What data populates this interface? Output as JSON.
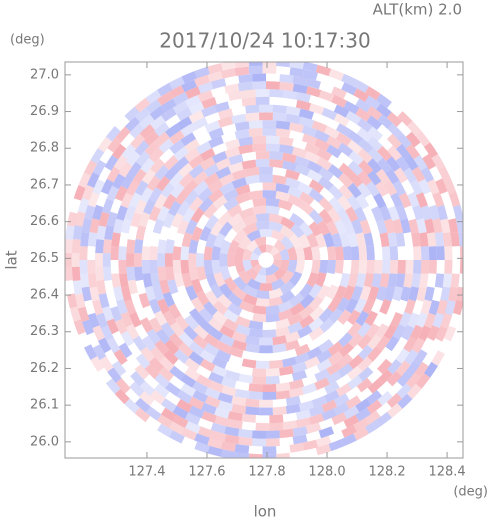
{
  "chart_data": {
    "type": "radar-ppi",
    "title": "2017/10/24 10:17:30",
    "subtitle": "ALT(km) 2.0",
    "y_unit": "(deg)",
    "x_unit": "(deg)",
    "xlabel": "lon",
    "ylabel": "lat",
    "xlim": [
      127.127,
      128.453
    ],
    "ylim": [
      25.956,
      27.035
    ],
    "xticks": [
      127.4,
      127.6,
      127.8,
      {
        "value": 128,
        "label": "128.0"
      },
      128.2,
      128.4
    ],
    "yticks": [
      {
        "value": 26,
        "label": "26.0"
      },
      26.1,
      26.2,
      26.3,
      26.4,
      26.5,
      26.6,
      26.7,
      26.8,
      26.9,
      {
        "value": 27,
        "label": "27.0"
      }
    ],
    "colors": [
      "#f4a0a8",
      "#a0a8f4"
    ]
  }
}
